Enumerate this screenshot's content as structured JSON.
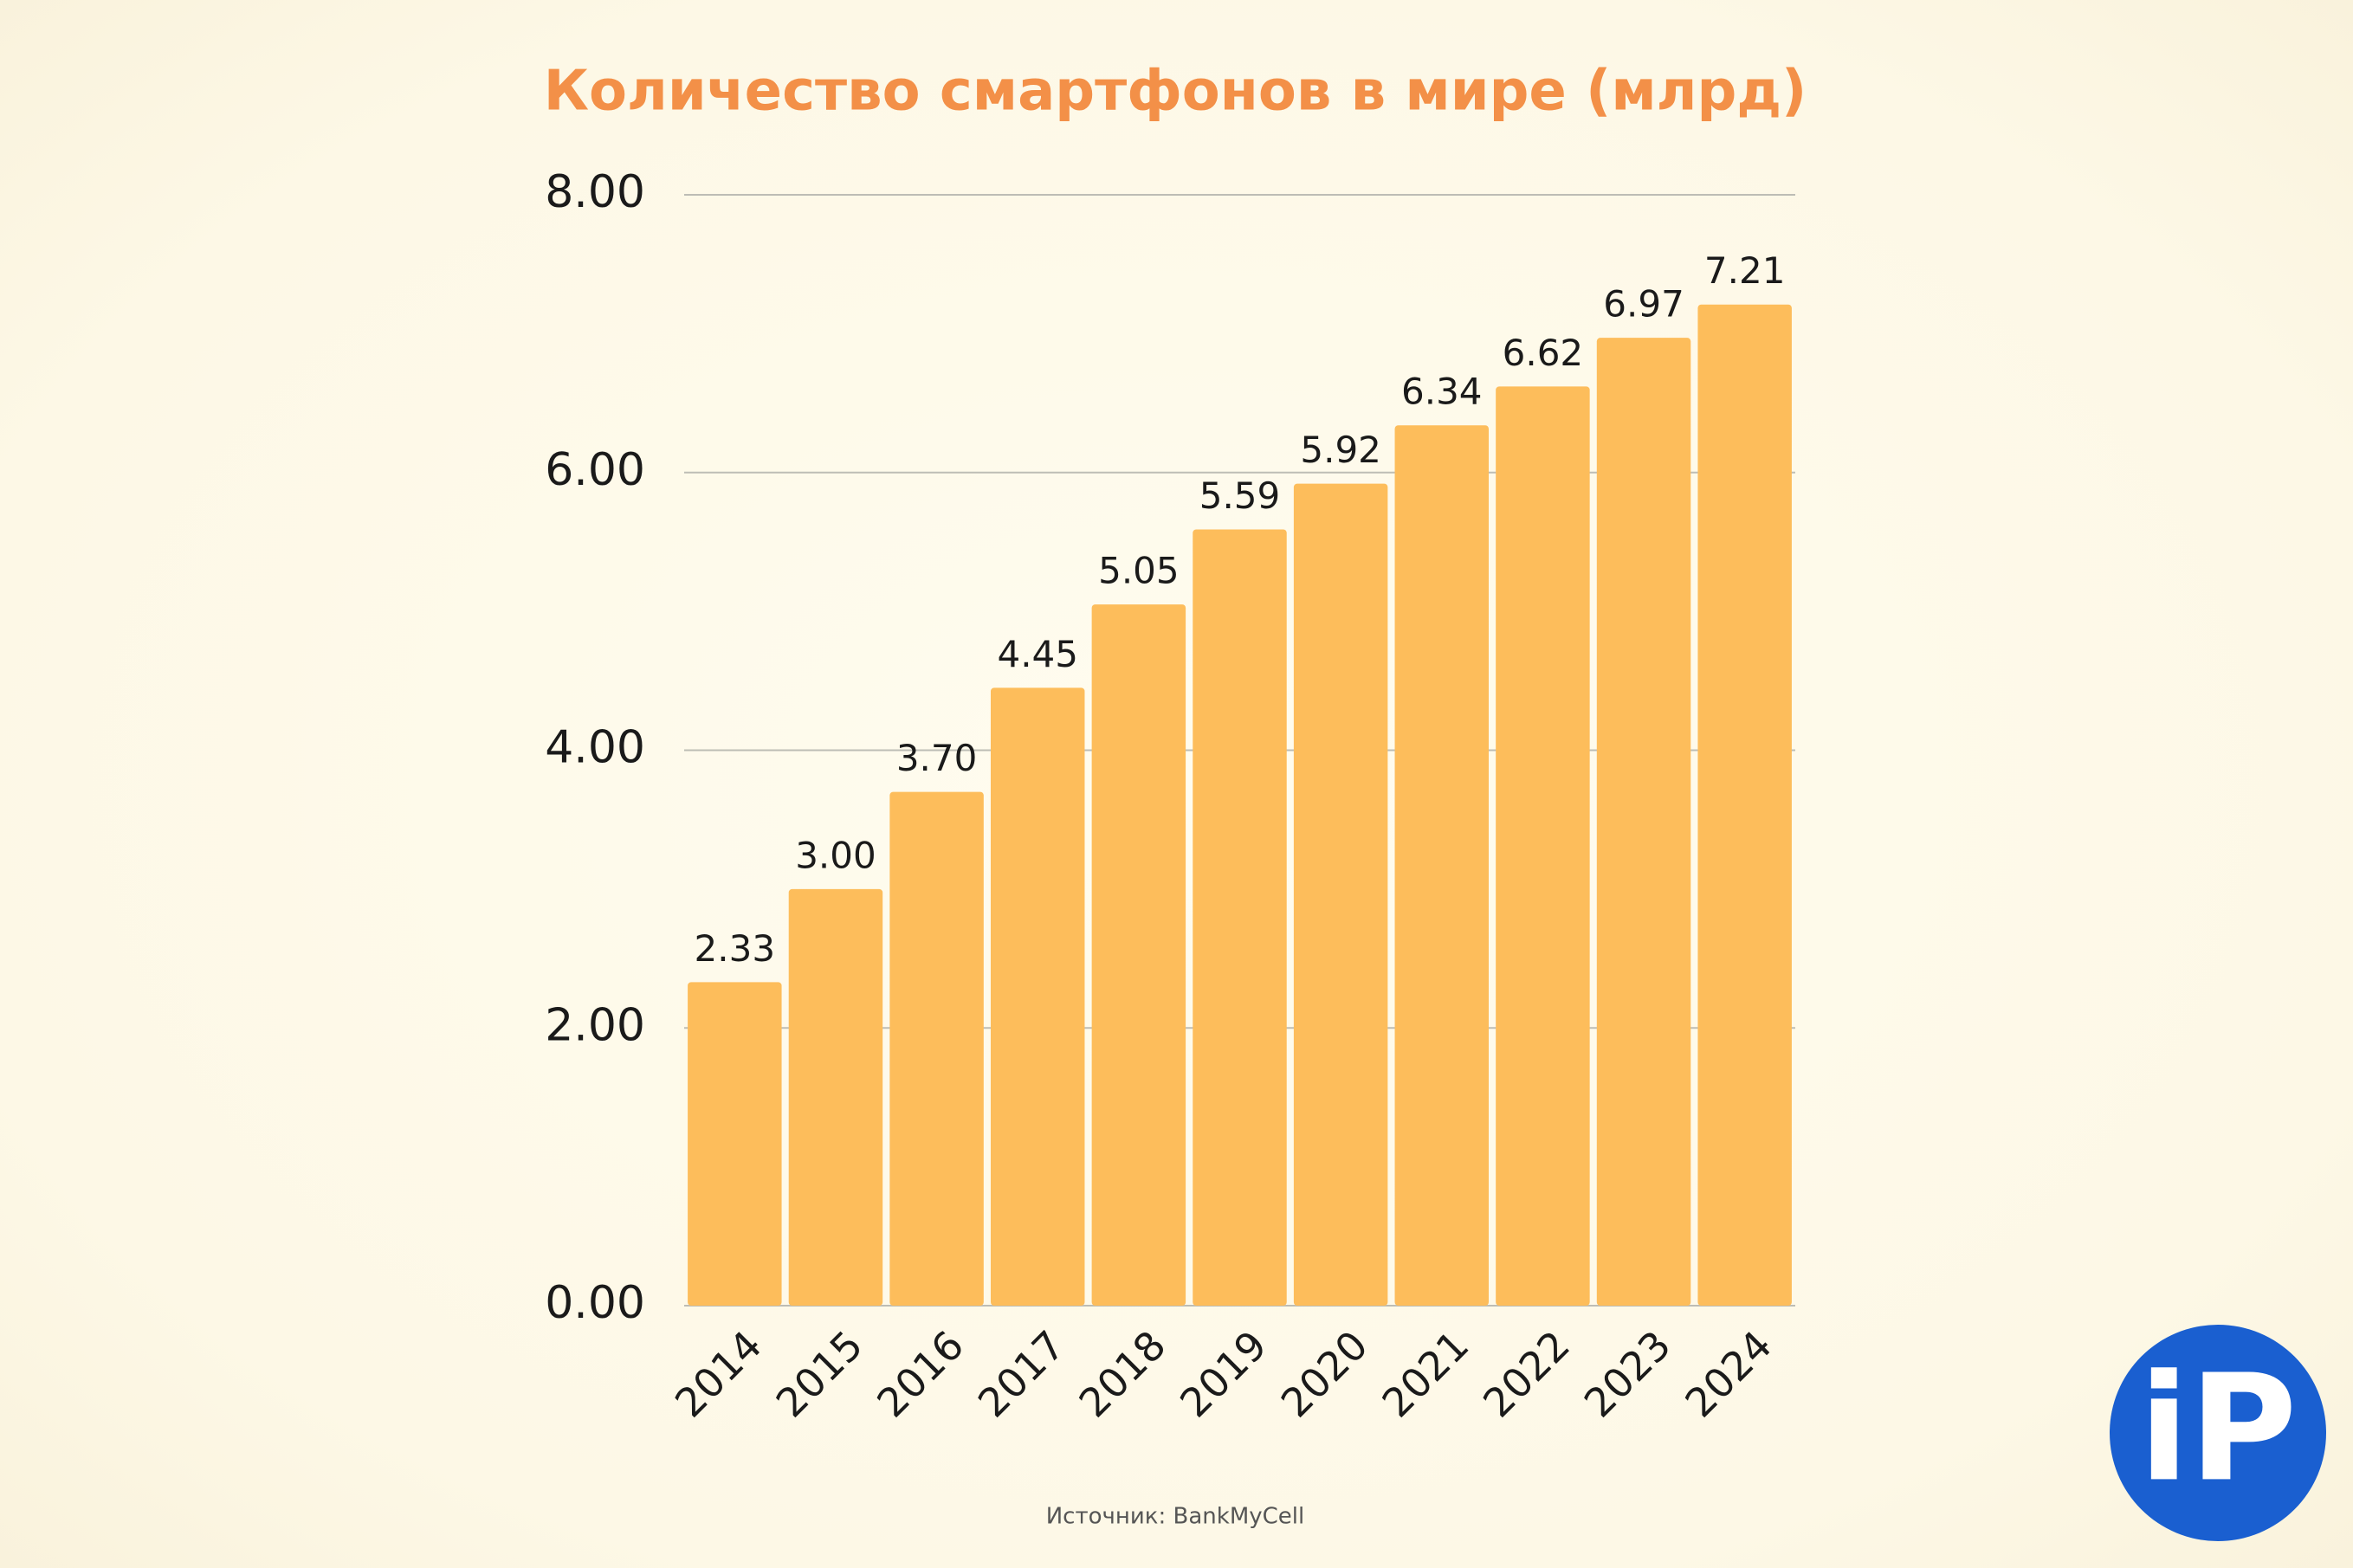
{
  "chart_data": {
    "type": "bar",
    "title": "Количество смартфонов в мире (млрд)",
    "categories": [
      "2014",
      "2015",
      "2016",
      "2017",
      "2018",
      "2019",
      "2020",
      "2021",
      "2022",
      "2023",
      "2024"
    ],
    "values": [
      2.33,
      3,
      3.7,
      4.45,
      5.05,
      5.59,
      5.92,
      6.34,
      6.62,
      6.97,
      7.21
    ],
    "value_labels": [
      "2.33",
      "3.00",
      "3.70",
      "4.45",
      "5.05",
      "5.59",
      "5.92",
      "6.34",
      "6.62",
      "6.97",
      "7.21"
    ],
    "color": "#fdbd5b",
    "ylim": [
      0,
      8
    ],
    "yticks": [
      {
        "value": 0,
        "label": "0.00"
      },
      {
        "value": 2,
        "label": "2.00"
      },
      {
        "value": 4,
        "label": "4.00"
      },
      {
        "value": 6,
        "label": "6.00"
      },
      {
        "value": 8,
        "label": "8.00"
      }
    ],
    "grid": true,
    "source": "Источник: BankMyCell"
  },
  "logo": {
    "text": "iP"
  }
}
